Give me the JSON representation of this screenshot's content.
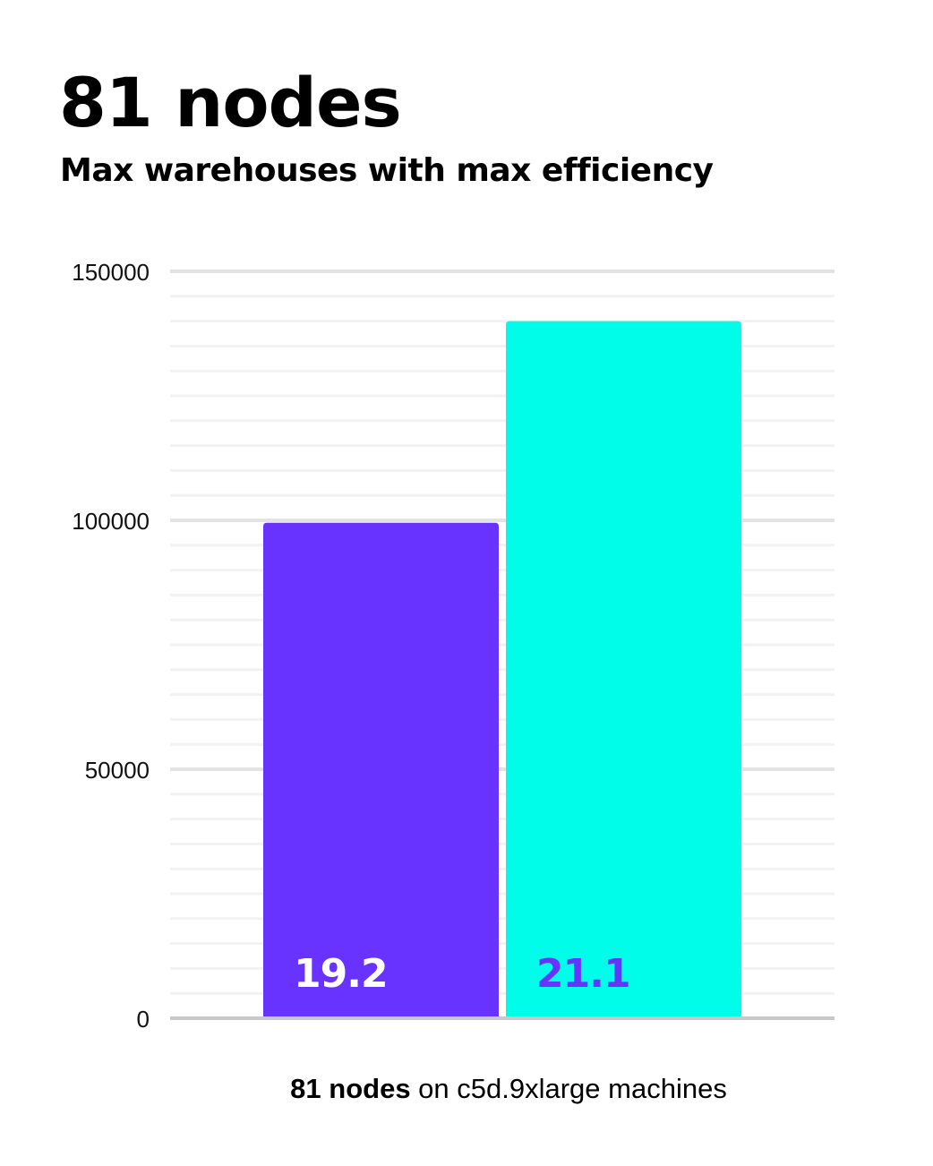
{
  "chart_data": {
    "type": "bar",
    "title": "81 nodes",
    "subtitle": "Max warehouses with max efficiency",
    "xlabel_bold": "81 nodes",
    "xlabel_rest": " on c5d.9xlarge machines",
    "ylim": [
      0,
      150000
    ],
    "yticks": [
      0,
      50000,
      100000,
      150000
    ],
    "ytick_labels": [
      "0",
      "50000",
      "100000",
      "150000"
    ],
    "minor_grid_step": 5000,
    "grid": true,
    "bars": [
      {
        "value": 99500,
        "label": "19.2",
        "color": "#6933ff",
        "label_color": "#ffffff"
      },
      {
        "value": 140000,
        "label": "21.1",
        "color": "#00fdea",
        "label_color": "#6933ff"
      }
    ]
  }
}
